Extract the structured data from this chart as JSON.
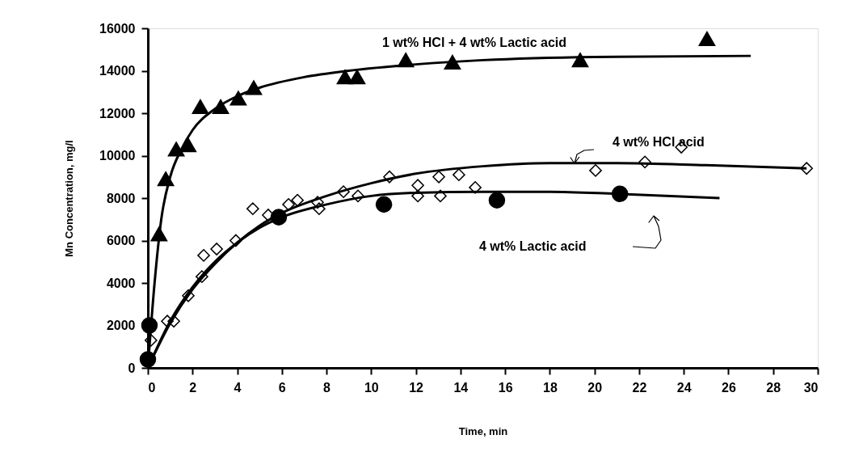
{
  "chart_data": {
    "type": "scatter",
    "xlabel": "Time, min",
    "ylabel": "Mn Concentration, mg/l",
    "xlim": [
      0,
      30
    ],
    "xticks": [
      0,
      2,
      4,
      6,
      8,
      10,
      12,
      14,
      16,
      18,
      20,
      22,
      24,
      26,
      28,
      30
    ],
    "ylim": [
      0,
      16000
    ],
    "yticks": [
      0,
      2000,
      4000,
      6000,
      8000,
      10000,
      12000,
      14000,
      16000
    ],
    "series": [
      {
        "name": "1 wt% HCl + 4 wt% Lactic acid",
        "marker": "triangle",
        "color": "#000000",
        "x": [
          0.5,
          0.8,
          1.27,
          1.8,
          2.35,
          3.26,
          4.05,
          4.74,
          8.83,
          9.37,
          11.55,
          13.64,
          19.36,
          25.04
        ],
        "values": [
          6200,
          8800,
          10200,
          10400,
          12200,
          12200,
          12600,
          13100,
          13600,
          13600,
          14400,
          14300,
          14400,
          15400
        ]
      },
      {
        "name": "4 wt% HCl acid",
        "marker": "diamond",
        "color": "#000000",
        "x": [
          0.14,
          0.87,
          1.16,
          1.81,
          2.42,
          2.5,
          3.08,
          3.94,
          4.7,
          5.39,
          6.3,
          6.7,
          7.6,
          7.67,
          8.76,
          9.41,
          10.82,
          12.09,
          12.09,
          13.03,
          13.1,
          13.93,
          14.66,
          20.05,
          22.26,
          23.89,
          29.5
        ],
        "values": [
          1300,
          2200,
          2200,
          3400,
          4300,
          5300,
          5600,
          6000,
          7500,
          7200,
          7700,
          7900,
          7800,
          7500,
          8300,
          8100,
          9000,
          8600,
          8100,
          9000,
          8100,
          9100,
          8500,
          9300,
          9700,
          10400,
          9400
        ]
      },
      {
        "name": "4 wt% Lactic acid",
        "marker": "circle",
        "color": "#000000",
        "x": [
          0,
          0.07,
          5.86,
          10.57,
          15.63,
          21.14
        ],
        "values": [
          400,
          2000,
          7100,
          7700,
          7900,
          8200
        ]
      },
      {
        "type": "line",
        "color": "#000000",
        "x": [
          0,
          0.3,
          0.6,
          1,
          1.5,
          2,
          3,
          4,
          5,
          7,
          9,
          12,
          15,
          20,
          27
        ],
        "values": [
          0,
          4000,
          7000,
          9000,
          10300,
          11200,
          12200,
          12800,
          13200,
          13700,
          14000,
          14300,
          14500,
          14650,
          14700
        ]
      },
      {
        "type": "line",
        "color": "#000000",
        "x": [
          0,
          1,
          2,
          3,
          4,
          5,
          6,
          8,
          10,
          12,
          15,
          18,
          21,
          25,
          29.5
        ],
        "values": [
          0,
          2100,
          3700,
          4900,
          5900,
          6700,
          7300,
          8100,
          8700,
          9150,
          9500,
          9650,
          9650,
          9550,
          9400
        ]
      },
      {
        "type": "line",
        "color": "#000000",
        "x": [
          0,
          1,
          2,
          3,
          4,
          5,
          6,
          8,
          10,
          12,
          15,
          18,
          21,
          25.6
        ],
        "values": [
          0,
          2200,
          3800,
          5000,
          5900,
          6600,
          7100,
          7700,
          8100,
          8250,
          8300,
          8300,
          8200,
          8000
        ]
      }
    ]
  }
}
